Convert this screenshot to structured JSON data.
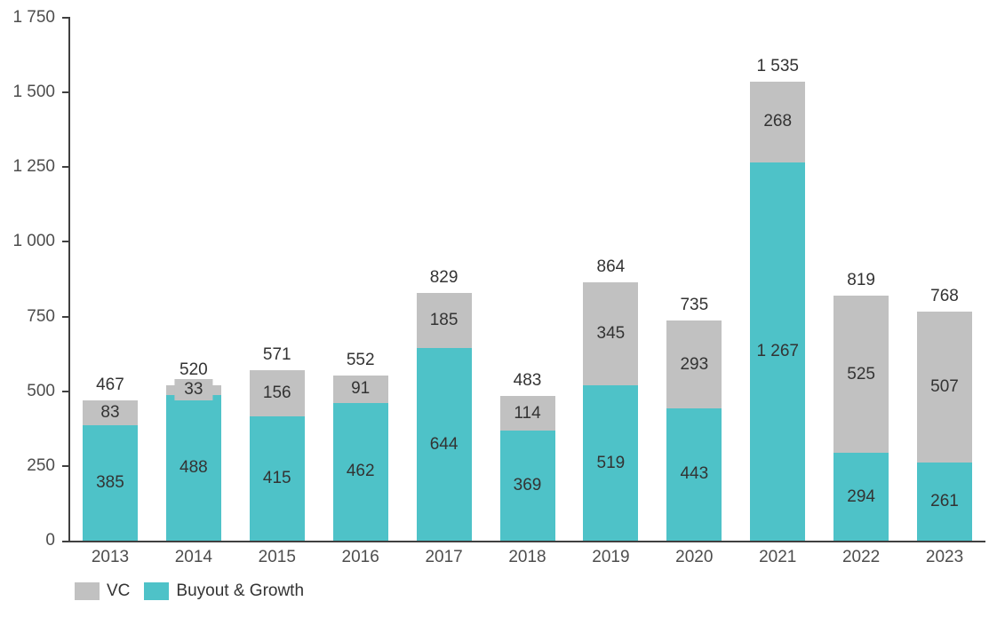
{
  "chart_data": {
    "type": "bar",
    "stacked": true,
    "title": "",
    "xlabel": "",
    "ylabel": "",
    "grid": false,
    "legend_position": "bottom-left",
    "categories": [
      "2013",
      "2014",
      "2015",
      "2016",
      "2017",
      "2018",
      "2019",
      "2020",
      "2021",
      "2022",
      "2023"
    ],
    "series": [
      {
        "name": "VC",
        "color": "#C1C1C1",
        "values": [
          83,
          33,
          156,
          91,
          185,
          114,
          345,
          293,
          268,
          525,
          507
        ],
        "value_labels": [
          "83",
          "33",
          "156",
          "91",
          "185",
          "114",
          "345",
          "293",
          "268",
          "525",
          "507"
        ]
      },
      {
        "name": "Buyout & Growth",
        "color": "#4EC2C8",
        "values": [
          385,
          488,
          415,
          462,
          644,
          369,
          519,
          443,
          1267,
          294,
          261
        ],
        "value_labels": [
          "385",
          "488",
          "415",
          "462",
          "644",
          "369",
          "519",
          "443",
          "1 267",
          "294",
          "261"
        ]
      }
    ],
    "totals": [
      467,
      520,
      571,
      552,
      829,
      483,
      864,
      735,
      1535,
      819,
      768
    ],
    "total_labels": [
      "467",
      "520",
      "571",
      "552",
      "829",
      "483",
      "864",
      "735",
      "1 535",
      "819",
      "768"
    ],
    "y_axis": {
      "min": 0,
      "max": 1750,
      "step": 250,
      "tick_labels": [
        "0",
        "250",
        "500",
        "750",
        "1 000",
        "1 250",
        "1 500",
        "1 750"
      ]
    },
    "legend": [
      {
        "label": "VC",
        "color": "#C1C1C1"
      },
      {
        "label": "Buyout & Growth",
        "color": "#4EC2C8"
      }
    ],
    "colors": {
      "axis": "#404040",
      "axis_text": "#4d4d4d",
      "data_label_text": "#333333",
      "background": "#ffffff"
    }
  }
}
